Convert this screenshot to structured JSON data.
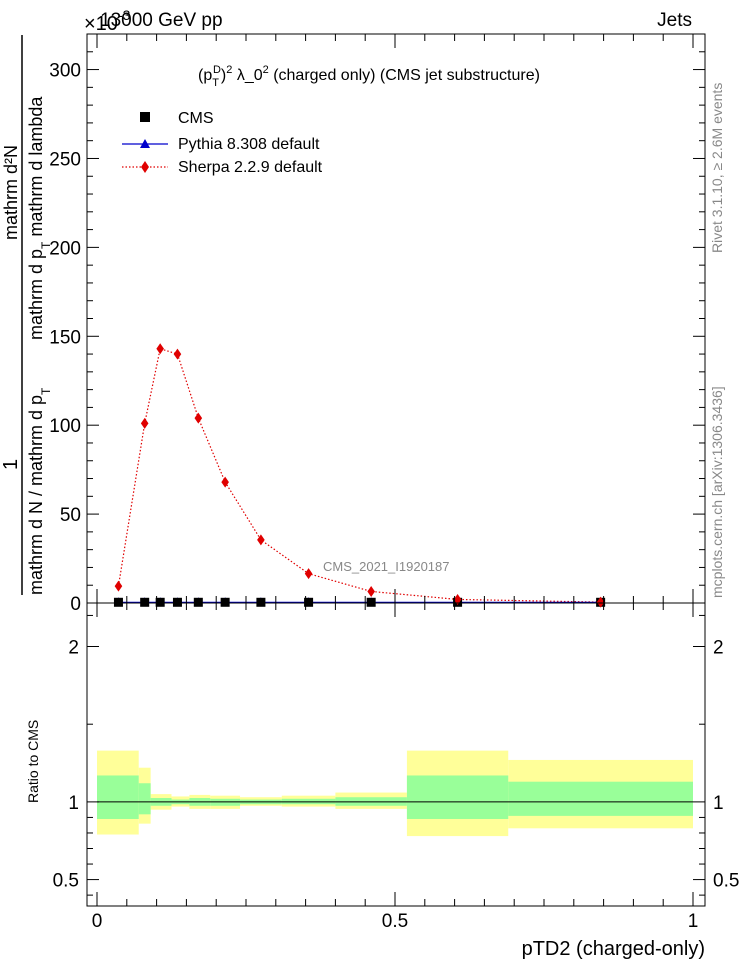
{
  "header": {
    "energy_label": "13000 GeV pp",
    "category_label": "Jets",
    "exponent_label": "×10"
  },
  "side_labels": {
    "rivet": "Rivet 3.1.10, ≥ 2.6M events",
    "mcplots": "mcplots.cern.ch [arXiv:1306.3436]"
  },
  "watermark": "CMS_2021_I1920187",
  "colors": {
    "cms": "#000000",
    "pythia": "#0000cc",
    "sherpa": "#e00000",
    "band_outer": "#ffff99",
    "band_inner": "#99ff99",
    "ratio_line": "#000000",
    "side_text": "#888888"
  },
  "chart_data": [
    {
      "type": "line",
      "title": "(p_T^D)^2 λ_0^2 (charged only) (CMS jet substructure)",
      "title_parts": {
        "p": "(p",
        "T": "T",
        "D": "D",
        "exp1": "2",
        "rest": " λ_0",
        "exp2": "2",
        "tail": " (charged only) (CMS jet substructure)"
      },
      "xlabel": "pTD2 (charged-only)",
      "ylabel_numerator": "1",
      "ylabel_parts": [
        "mathrm d N / mathrm d p",
        "T",
        "mathrm d p",
        "T",
        " mathrm d lambda",
        "mathrm d²N"
      ],
      "xlim": [
        0,
        1
      ],
      "ylim": [
        0,
        320
      ],
      "y_multiplier_exponent": "-3",
      "yticks": [
        0,
        50,
        100,
        150,
        200,
        250,
        300
      ],
      "series": [
        {
          "name": "CMS",
          "marker": "square",
          "x": [
            0.036,
            0.08,
            0.106,
            0.135,
            0.17,
            0.215,
            0.275,
            0.355,
            0.46,
            0.605,
            0.845
          ],
          "y": [
            0.4,
            0.4,
            0.4,
            0.4,
            0.4,
            0.4,
            0.4,
            0.4,
            0.4,
            0.4,
            0.4
          ]
        },
        {
          "name": "Pythia 8.308 default",
          "marker": "triangle",
          "x": [
            0.036,
            0.08,
            0.106,
            0.135,
            0.17,
            0.215,
            0.275,
            0.355,
            0.46,
            0.605,
            0.845
          ],
          "y": [
            0.4,
            0.4,
            0.4,
            0.4,
            0.4,
            0.4,
            0.4,
            0.4,
            0.4,
            0.4,
            0.4
          ]
        },
        {
          "name": "Sherpa 2.2.9 default",
          "marker": "diamond",
          "x": [
            0.036,
            0.08,
            0.106,
            0.135,
            0.17,
            0.215,
            0.275,
            0.355,
            0.46,
            0.605,
            0.845
          ],
          "y": [
            9.5,
            101,
            143,
            140,
            104,
            68,
            35.5,
            16.5,
            6.5,
            2,
            0.5
          ]
        }
      ]
    },
    {
      "type": "area",
      "ylabel": "Ratio to CMS",
      "xlim": [
        0,
        1
      ],
      "ylim": [
        0.33,
        2.28
      ],
      "yticks": [
        0.5,
        1,
        2
      ],
      "ytick_labels": [
        "0.5",
        "1",
        "2"
      ],
      "xticks": [
        0,
        0.5,
        1
      ],
      "xtick_labels": [
        "0",
        "0.5",
        "1"
      ],
      "bands": {
        "edges": [
          0,
          0.07,
          0.09,
          0.125,
          0.155,
          0.19,
          0.24,
          0.31,
          0.4,
          0.52,
          0.69,
          1.0
        ],
        "outer_low": [
          0.79,
          0.86,
          0.95,
          0.97,
          0.955,
          0.955,
          0.975,
          0.97,
          0.955,
          0.78,
          0.83
        ],
        "outer_high": [
          1.33,
          1.22,
          1.05,
          1.035,
          1.045,
          1.04,
          1.03,
          1.04,
          1.06,
          1.33,
          1.27
        ],
        "inner_low": [
          0.89,
          0.92,
          0.975,
          0.985,
          0.975,
          0.975,
          0.985,
          0.985,
          0.975,
          0.89,
          0.91
        ],
        "inner_high": [
          1.17,
          1.12,
          1.025,
          1.015,
          1.025,
          1.02,
          1.015,
          1.02,
          1.03,
          1.17,
          1.13
        ]
      },
      "reference_y": 1
    }
  ]
}
